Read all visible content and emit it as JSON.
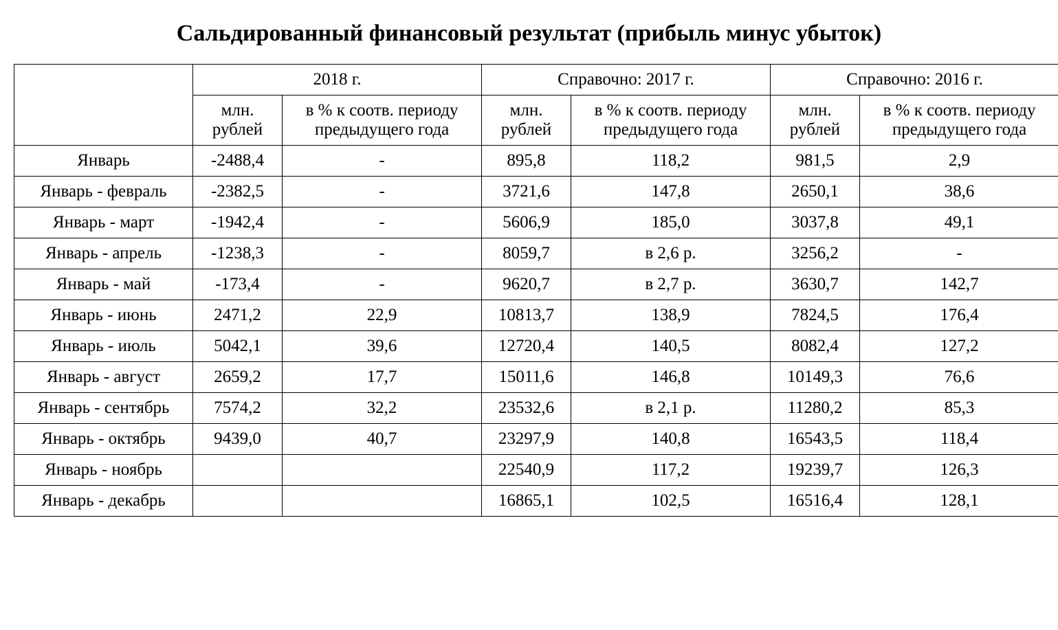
{
  "title": "Сальдированный финансовый результат (прибыль минус убыток)",
  "table": {
    "header_groups": [
      "2018 г.",
      "Справочно: 2017 г.",
      "Справочно: 2016 г."
    ],
    "sub_header_mln": "млн. рублей",
    "sub_header_pct": "в % к соотв. периоду предыдущего года",
    "rows": [
      {
        "period": "Январь",
        "y2018_mln": "-2488,4",
        "y2018_pct": "-",
        "y2017_mln": "895,8",
        "y2017_pct": "118,2",
        "y2016_mln": "981,5",
        "y2016_pct": "2,9"
      },
      {
        "period": "Январь - февраль",
        "y2018_mln": "-2382,5",
        "y2018_pct": "-",
        "y2017_mln": "3721,6",
        "y2017_pct": "147,8",
        "y2016_mln": "2650,1",
        "y2016_pct": "38,6"
      },
      {
        "period": "Январь - март",
        "y2018_mln": "-1942,4",
        "y2018_pct": "-",
        "y2017_mln": "5606,9",
        "y2017_pct": "185,0",
        "y2016_mln": "3037,8",
        "y2016_pct": "49,1"
      },
      {
        "period": "Январь - апрель",
        "y2018_mln": "-1238,3",
        "y2018_pct": "-",
        "y2017_mln": "8059,7",
        "y2017_pct": "в 2,6 р.",
        "y2016_mln": "3256,2",
        "y2016_pct": "-"
      },
      {
        "period": "Январь - май",
        "y2018_mln": "-173,4",
        "y2018_pct": "-",
        "y2017_mln": "9620,7",
        "y2017_pct": "в 2,7 р.",
        "y2016_mln": "3630,7",
        "y2016_pct": "142,7"
      },
      {
        "period": "Январь - июнь",
        "y2018_mln": "2471,2",
        "y2018_pct": "22,9",
        "y2017_mln": "10813,7",
        "y2017_pct": "138,9",
        "y2016_mln": "7824,5",
        "y2016_pct": "176,4"
      },
      {
        "period": "Январь - июль",
        "y2018_mln": "5042,1",
        "y2018_pct": "39,6",
        "y2017_mln": "12720,4",
        "y2017_pct": "140,5",
        "y2016_mln": "8082,4",
        "y2016_pct": "127,2"
      },
      {
        "period": "Январь - август",
        "y2018_mln": "2659,2",
        "y2018_pct": "17,7",
        "y2017_mln": "15011,6",
        "y2017_pct": "146,8",
        "y2016_mln": "10149,3",
        "y2016_pct": "76,6"
      },
      {
        "period": "Январь - сентябрь",
        "y2018_mln": "7574,2",
        "y2018_pct": "32,2",
        "y2017_mln": "23532,6",
        "y2017_pct": "в 2,1 р.",
        "y2016_mln": "11280,2",
        "y2016_pct": "85,3"
      },
      {
        "period": "Январь - октябрь",
        "y2018_mln": "9439,0",
        "y2018_pct": "40,7",
        "y2017_mln": "23297,9",
        "y2017_pct": "140,8",
        "y2016_mln": "16543,5",
        "y2016_pct": "118,4"
      },
      {
        "period": "Январь - ноябрь",
        "y2018_mln": "",
        "y2018_pct": "",
        "y2017_mln": "22540,9",
        "y2017_pct": "117,2",
        "y2016_mln": "19239,7",
        "y2016_pct": "126,3"
      },
      {
        "period": "Январь - декабрь",
        "y2018_mln": "",
        "y2018_pct": "",
        "y2017_mln": "16865,1",
        "y2017_pct": "102,5",
        "y2016_mln": "16516,4",
        "y2016_pct": "128,1"
      }
    ]
  },
  "style": {
    "background_color": "#ffffff",
    "text_color": "#000000",
    "border_color": "#000000",
    "title_fontsize": 34,
    "cell_fontsize": 25,
    "font_family": "Times New Roman"
  }
}
